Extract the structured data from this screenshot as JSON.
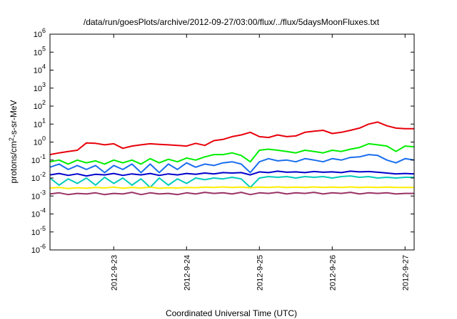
{
  "chart_data": {
    "type": "line",
    "title": "/data/run/goesPlots/archive/2012-09-27/03:00/flux/../flux/5daysMoonFluxes.txt",
    "xlabel": "Coordinated Universal Time (UTC)",
    "ylabel": "protons/cm2-s-sr-MeV",
    "y_scale": "log",
    "ylim": [
      1e-06,
      1000000.0
    ],
    "y_ticks": [
      {
        "value": 1e-06,
        "base": "10",
        "exp": "-6"
      },
      {
        "value": 1e-05,
        "base": "10",
        "exp": "-5"
      },
      {
        "value": 0.0001,
        "base": "10",
        "exp": "-4"
      },
      {
        "value": 0.001,
        "base": "10",
        "exp": "-3"
      },
      {
        "value": 0.01,
        "base": "10",
        "exp": "-2"
      },
      {
        "value": 0.1,
        "base": "10",
        "exp": "-1"
      },
      {
        "value": 1,
        "base": "10",
        "exp": "0"
      },
      {
        "value": 10.0,
        "base": "10",
        "exp": "1"
      },
      {
        "value": 100.0,
        "base": "10",
        "exp": "2"
      },
      {
        "value": 1000.0,
        "base": "10",
        "exp": "3"
      },
      {
        "value": 10000.0,
        "base": "10",
        "exp": "4"
      },
      {
        "value": 100000.0,
        "base": "10",
        "exp": "5"
      },
      {
        "value": 1000000.0,
        "base": "10",
        "exp": "6"
      }
    ],
    "x_range": [
      "2012-09-22T03:00",
      "2012-09-27T03:00"
    ],
    "x_ticks": [
      "2012-9-23",
      "2012-9-24",
      "2012-9-25",
      "2012-9-26",
      "2012-9-27"
    ],
    "grid": false,
    "legend": "none",
    "series": [
      {
        "color": "#e8000b",
        "x": [
          "2012-09-22T03:00",
          "2012-09-22T06:00",
          "2012-09-22T09:00",
          "2012-09-22T12:00",
          "2012-09-22T15:00",
          "2012-09-22T18:00",
          "2012-09-22T21:00",
          "2012-09-23T00:00",
          "2012-09-23T03:00",
          "2012-09-23T06:00",
          "2012-09-23T09:00",
          "2012-09-23T12:00",
          "2012-09-23T15:00",
          "2012-09-23T18:00",
          "2012-09-23T21:00",
          "2012-09-24T00:00",
          "2012-09-24T03:00",
          "2012-09-24T06:00",
          "2012-09-24T09:00",
          "2012-09-24T12:00",
          "2012-09-24T15:00",
          "2012-09-24T18:00",
          "2012-09-24T21:00",
          "2012-09-25T00:00",
          "2012-09-25T03:00",
          "2012-09-25T06:00",
          "2012-09-25T09:00",
          "2012-09-25T12:00",
          "2012-09-25T15:00",
          "2012-09-25T18:00",
          "2012-09-25T21:00",
          "2012-09-26T00:00",
          "2012-09-26T03:00",
          "2012-09-26T06:00",
          "2012-09-26T09:00",
          "2012-09-26T12:00",
          "2012-09-26T15:00",
          "2012-09-26T18:00",
          "2012-09-26T21:00",
          "2012-09-27T00:00",
          "2012-09-27T03:00"
        ],
        "values": [
          0.2,
          0.25,
          0.3,
          0.35,
          0.9,
          0.85,
          0.7,
          0.8,
          0.45,
          0.6,
          0.7,
          0.8,
          0.75,
          0.7,
          0.65,
          0.6,
          0.85,
          0.65,
          1.2,
          1.4,
          2.0,
          2.5,
          3.5,
          2.0,
          1.8,
          2.5,
          2.0,
          2.2,
          3.5,
          4.0,
          4.5,
          3.0,
          3.5,
          4.5,
          6.0,
          10.0,
          13.0,
          8.0,
          6.0,
          5.5,
          5.5
        ]
      },
      {
        "color": "#00ee00",
        "x": [
          "2012-09-22T03:00",
          "2012-09-22T06:00",
          "2012-09-22T09:00",
          "2012-09-22T12:00",
          "2012-09-22T15:00",
          "2012-09-22T18:00",
          "2012-09-22T21:00",
          "2012-09-23T00:00",
          "2012-09-23T03:00",
          "2012-09-23T06:00",
          "2012-09-23T09:00",
          "2012-09-23T12:00",
          "2012-09-23T15:00",
          "2012-09-23T18:00",
          "2012-09-23T21:00",
          "2012-09-24T00:00",
          "2012-09-24T03:00",
          "2012-09-24T06:00",
          "2012-09-24T09:00",
          "2012-09-24T12:00",
          "2012-09-24T15:00",
          "2012-09-24T18:00",
          "2012-09-24T21:00",
          "2012-09-25T00:00",
          "2012-09-25T03:00",
          "2012-09-25T06:00",
          "2012-09-25T09:00",
          "2012-09-25T12:00",
          "2012-09-25T15:00",
          "2012-09-25T18:00",
          "2012-09-25T21:00",
          "2012-09-26T00:00",
          "2012-09-26T03:00",
          "2012-09-26T06:00",
          "2012-09-26T09:00",
          "2012-09-26T12:00",
          "2012-09-26T15:00",
          "2012-09-26T18:00",
          "2012-09-26T21:00",
          "2012-09-27T00:00",
          "2012-09-27T03:00"
        ],
        "values": [
          0.08,
          0.1,
          0.06,
          0.1,
          0.07,
          0.09,
          0.06,
          0.1,
          0.07,
          0.1,
          0.06,
          0.12,
          0.07,
          0.11,
          0.08,
          0.13,
          0.1,
          0.15,
          0.2,
          0.2,
          0.25,
          0.18,
          0.08,
          0.35,
          0.4,
          0.35,
          0.3,
          0.25,
          0.35,
          0.3,
          0.25,
          0.35,
          0.3,
          0.4,
          0.5,
          0.8,
          0.7,
          0.6,
          0.3,
          0.6,
          0.55
        ]
      },
      {
        "color": "#1a6eee",
        "x": [
          "2012-09-22T03:00",
          "2012-09-22T06:00",
          "2012-09-22T09:00",
          "2012-09-22T12:00",
          "2012-09-22T15:00",
          "2012-09-22T18:00",
          "2012-09-22T21:00",
          "2012-09-23T00:00",
          "2012-09-23T03:00",
          "2012-09-23T06:00",
          "2012-09-23T09:00",
          "2012-09-23T12:00",
          "2012-09-23T15:00",
          "2012-09-23T18:00",
          "2012-09-23T21:00",
          "2012-09-24T00:00",
          "2012-09-24T03:00",
          "2012-09-24T06:00",
          "2012-09-24T09:00",
          "2012-09-24T12:00",
          "2012-09-24T15:00",
          "2012-09-24T18:00",
          "2012-09-24T21:00",
          "2012-09-25T00:00",
          "2012-09-25T03:00",
          "2012-09-25T06:00",
          "2012-09-25T09:00",
          "2012-09-25T12:00",
          "2012-09-25T15:00",
          "2012-09-25T18:00",
          "2012-09-25T21:00",
          "2012-09-26T00:00",
          "2012-09-26T03:00",
          "2012-09-26T06:00",
          "2012-09-26T09:00",
          "2012-09-26T12:00",
          "2012-09-26T15:00",
          "2012-09-26T18:00",
          "2012-09-26T21:00",
          "2012-09-27T00:00",
          "2012-09-27T03:00"
        ],
        "values": [
          0.04,
          0.06,
          0.03,
          0.05,
          0.03,
          0.05,
          0.02,
          0.05,
          0.03,
          0.06,
          0.02,
          0.06,
          0.02,
          0.06,
          0.03,
          0.07,
          0.04,
          0.06,
          0.05,
          0.07,
          0.08,
          0.06,
          0.02,
          0.08,
          0.12,
          0.09,
          0.1,
          0.08,
          0.12,
          0.1,
          0.08,
          0.12,
          0.1,
          0.14,
          0.15,
          0.2,
          0.18,
          0.1,
          0.07,
          0.12,
          0.1
        ]
      },
      {
        "color": "#0000cc",
        "x": [
          "2012-09-22T03:00",
          "2012-09-22T06:00",
          "2012-09-22T09:00",
          "2012-09-22T12:00",
          "2012-09-22T15:00",
          "2012-09-22T18:00",
          "2012-09-22T21:00",
          "2012-09-23T00:00",
          "2012-09-23T03:00",
          "2012-09-23T06:00",
          "2012-09-23T09:00",
          "2012-09-23T12:00",
          "2012-09-23T15:00",
          "2012-09-23T18:00",
          "2012-09-23T21:00",
          "2012-09-24T00:00",
          "2012-09-24T03:00",
          "2012-09-24T06:00",
          "2012-09-24T09:00",
          "2012-09-24T12:00",
          "2012-09-24T15:00",
          "2012-09-24T18:00",
          "2012-09-24T21:00",
          "2012-09-25T00:00",
          "2012-09-25T03:00",
          "2012-09-25T06:00",
          "2012-09-25T09:00",
          "2012-09-25T12:00",
          "2012-09-25T15:00",
          "2012-09-25T18:00",
          "2012-09-25T21:00",
          "2012-09-26T00:00",
          "2012-09-26T03:00",
          "2012-09-26T06:00",
          "2012-09-26T09:00",
          "2012-09-26T12:00",
          "2012-09-26T15:00",
          "2012-09-26T18:00",
          "2012-09-26T21:00",
          "2012-09-27T00:00",
          "2012-09-27T03:00"
        ],
        "values": [
          0.015,
          0.018,
          0.014,
          0.017,
          0.013,
          0.016,
          0.015,
          0.018,
          0.014,
          0.017,
          0.015,
          0.018,
          0.014,
          0.017,
          0.015,
          0.018,
          0.016,
          0.019,
          0.017,
          0.02,
          0.019,
          0.02,
          0.015,
          0.022,
          0.02,
          0.024,
          0.021,
          0.022,
          0.02,
          0.023,
          0.021,
          0.022,
          0.02,
          0.024,
          0.022,
          0.023,
          0.021,
          0.019,
          0.017,
          0.018,
          0.017
        ]
      },
      {
        "color": "#00ccbb",
        "x": [
          "2012-09-22T03:00",
          "2012-09-22T06:00",
          "2012-09-22T09:00",
          "2012-09-22T12:00",
          "2012-09-22T15:00",
          "2012-09-22T18:00",
          "2012-09-22T21:00",
          "2012-09-23T00:00",
          "2012-09-23T03:00",
          "2012-09-23T06:00",
          "2012-09-23T09:00",
          "2012-09-23T12:00",
          "2012-09-23T15:00",
          "2012-09-23T18:00",
          "2012-09-23T21:00",
          "2012-09-24T00:00",
          "2012-09-24T03:00",
          "2012-09-24T06:00",
          "2012-09-24T09:00",
          "2012-09-24T12:00",
          "2012-09-24T15:00",
          "2012-09-24T18:00",
          "2012-09-24T21:00",
          "2012-09-25T00:00",
          "2012-09-25T03:00",
          "2012-09-25T06:00",
          "2012-09-25T09:00",
          "2012-09-25T12:00",
          "2012-09-25T15:00",
          "2012-09-25T18:00",
          "2012-09-25T21:00",
          "2012-09-26T00:00",
          "2012-09-26T03:00",
          "2012-09-26T06:00",
          "2012-09-26T09:00",
          "2012-09-26T12:00",
          "2012-09-26T15:00",
          "2012-09-26T18:00",
          "2012-09-26T21:00",
          "2012-09-27T00:00",
          "2012-09-27T03:00"
        ],
        "values": [
          0.01,
          0.004,
          0.009,
          0.005,
          0.01,
          0.004,
          0.011,
          0.005,
          0.01,
          0.004,
          0.009,
          0.003,
          0.01,
          0.004,
          0.009,
          0.005,
          0.01,
          0.008,
          0.01,
          0.009,
          0.011,
          0.009,
          0.003,
          0.01,
          0.012,
          0.011,
          0.012,
          0.01,
          0.012,
          0.011,
          0.012,
          0.01,
          0.012,
          0.013,
          0.011,
          0.012,
          0.01,
          0.011,
          0.01,
          0.011,
          0.011
        ]
      },
      {
        "color": "#ffee00",
        "x": [
          "2012-09-22T03:00",
          "2012-09-22T06:00",
          "2012-09-22T09:00",
          "2012-09-22T12:00",
          "2012-09-22T15:00",
          "2012-09-22T18:00",
          "2012-09-22T21:00",
          "2012-09-23T00:00",
          "2012-09-23T03:00",
          "2012-09-23T06:00",
          "2012-09-23T09:00",
          "2012-09-23T12:00",
          "2012-09-23T15:00",
          "2012-09-23T18:00",
          "2012-09-23T21:00",
          "2012-09-24T00:00",
          "2012-09-24T03:00",
          "2012-09-24T06:00",
          "2012-09-24T09:00",
          "2012-09-24T12:00",
          "2012-09-24T15:00",
          "2012-09-24T18:00",
          "2012-09-24T21:00",
          "2012-09-25T00:00",
          "2012-09-25T03:00",
          "2012-09-25T06:00",
          "2012-09-25T09:00",
          "2012-09-25T12:00",
          "2012-09-25T15:00",
          "2012-09-25T18:00",
          "2012-09-25T21:00",
          "2012-09-26T00:00",
          "2012-09-26T03:00",
          "2012-09-26T06:00",
          "2012-09-26T09:00",
          "2012-09-26T12:00",
          "2012-09-26T15:00",
          "2012-09-26T18:00",
          "2012-09-26T21:00",
          "2012-09-27T00:00",
          "2012-09-27T03:00"
        ],
        "values": [
          0.0028,
          0.003,
          0.0026,
          0.0029,
          0.0027,
          0.003,
          0.0028,
          0.0031,
          0.0027,
          0.003,
          0.0028,
          0.0031,
          0.0027,
          0.0029,
          0.0028,
          0.003,
          0.0029,
          0.0031,
          0.003,
          0.0032,
          0.003,
          0.0031,
          0.0029,
          0.0031,
          0.003,
          0.0032,
          0.003,
          0.0031,
          0.003,
          0.0032,
          0.003,
          0.0031,
          0.003,
          0.0032,
          0.003,
          0.0031,
          0.003,
          0.0031,
          0.003,
          0.003,
          0.003
        ]
      },
      {
        "color": "#993366",
        "x": [
          "2012-09-22T03:00",
          "2012-09-22T06:00",
          "2012-09-22T09:00",
          "2012-09-22T12:00",
          "2012-09-22T15:00",
          "2012-09-22T18:00",
          "2012-09-22T21:00",
          "2012-09-23T00:00",
          "2012-09-23T03:00",
          "2012-09-23T06:00",
          "2012-09-23T09:00",
          "2012-09-23T12:00",
          "2012-09-23T15:00",
          "2012-09-23T18:00",
          "2012-09-23T21:00",
          "2012-09-24T00:00",
          "2012-09-24T03:00",
          "2012-09-24T06:00",
          "2012-09-24T09:00",
          "2012-09-24T12:00",
          "2012-09-24T15:00",
          "2012-09-24T18:00",
          "2012-09-24T21:00",
          "2012-09-25T00:00",
          "2012-09-25T03:00",
          "2012-09-25T06:00",
          "2012-09-25T09:00",
          "2012-09-25T12:00",
          "2012-09-25T15:00",
          "2012-09-25T18:00",
          "2012-09-25T21:00",
          "2012-09-26T00:00",
          "2012-09-26T03:00",
          "2012-09-26T06:00",
          "2012-09-26T09:00",
          "2012-09-26T12:00",
          "2012-09-26T15:00",
          "2012-09-26T18:00",
          "2012-09-26T21:00",
          "2012-09-27T00:00",
          "2012-09-27T03:00"
        ],
        "values": [
          0.0013,
          0.0015,
          0.0012,
          0.0014,
          0.0013,
          0.0015,
          0.0012,
          0.0014,
          0.0013,
          0.0016,
          0.0012,
          0.0015,
          0.0013,
          0.0014,
          0.0012,
          0.0015,
          0.0013,
          0.0016,
          0.0014,
          0.0015,
          0.0013,
          0.0016,
          0.0012,
          0.0015,
          0.0014,
          0.0016,
          0.0013,
          0.0015,
          0.0014,
          0.0016,
          0.0013,
          0.0015,
          0.0014,
          0.0016,
          0.0013,
          0.0015,
          0.0014,
          0.0015,
          0.0013,
          0.0014,
          0.0014
        ]
      }
    ]
  }
}
